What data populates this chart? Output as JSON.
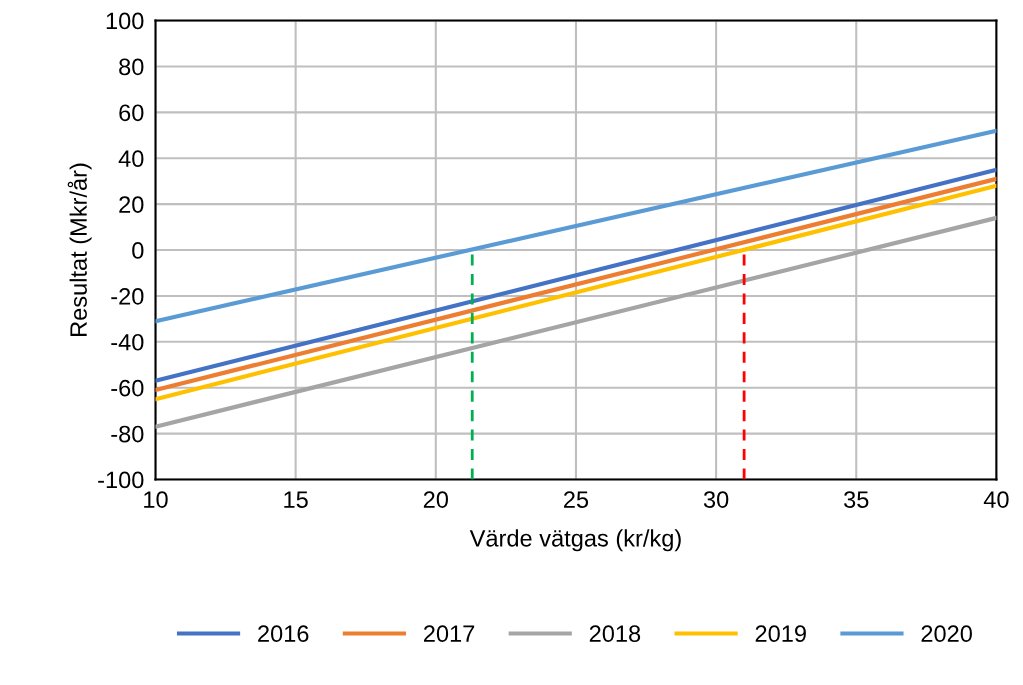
{
  "chart_data": {
    "type": "line",
    "xlabel": "Värde vätgas (kr/kg)",
    "ylabel": "Resultat (Mkr/år)",
    "x": [
      10,
      40
    ],
    "xlim": [
      10,
      40
    ],
    "xticks": [
      10,
      15,
      20,
      25,
      30,
      35,
      40
    ],
    "ylim": [
      -100,
      100
    ],
    "yticks": [
      -100,
      -80,
      -60,
      -40,
      -20,
      0,
      20,
      40,
      60,
      80,
      100
    ],
    "grid": true,
    "legend": "bottom",
    "marker": "none",
    "line_style": "solid",
    "series": [
      {
        "name": "2016",
        "color": "#4472c4",
        "values": [
          -57,
          35
        ]
      },
      {
        "name": "2017",
        "color": "#ed7d31",
        "values": [
          -61,
          31
        ]
      },
      {
        "name": "2018",
        "color": "#a5a5a5",
        "values": [
          -77,
          14
        ]
      },
      {
        "name": "2019",
        "color": "#ffc000",
        "values": [
          -65,
          28
        ]
      },
      {
        "name": "2020",
        "color": "#5b9bd5",
        "values": [
          -31,
          52
        ]
      }
    ],
    "ref_lines": [
      {
        "axis": "x",
        "value": 21.3,
        "label": null,
        "color": "#00b050",
        "line_style": "dashed"
      },
      {
        "axis": "x",
        "value": 31,
        "label": null,
        "color": "#ff0000",
        "line_style": "dashed"
      }
    ]
  }
}
